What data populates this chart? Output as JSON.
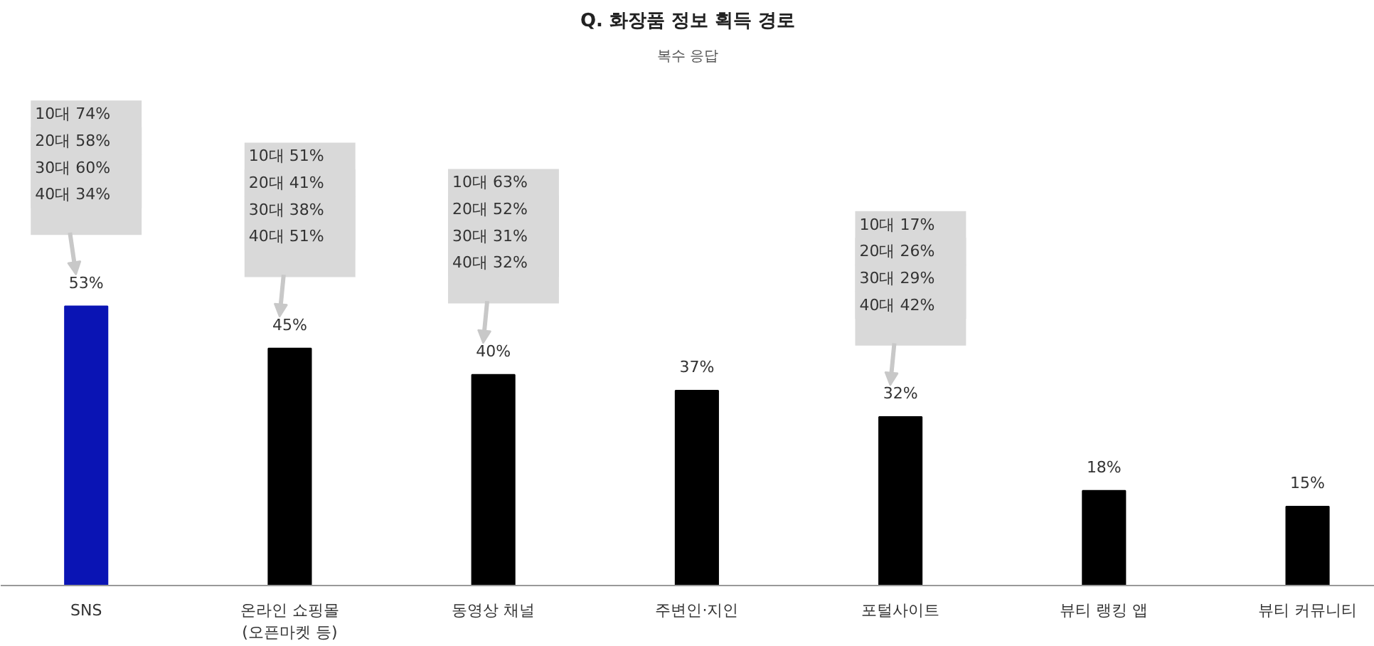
{
  "chart_data": {
    "type": "bar",
    "title": "Q. 화장품 정보 획득 경로",
    "subtitle": "복수 응답",
    "categories": [
      "SNS",
      "온라인 쇼핑몰\n(오픈마켓 등)",
      "동영상 채널",
      "주변인·지인",
      "포털사이트",
      "뷰티 랭킹 앱",
      "뷰티 커뮤니티"
    ],
    "values": [
      53,
      45,
      40,
      37,
      32,
      18,
      15
    ],
    "colors": [
      "#0a14b4",
      "#000000",
      "#000000",
      "#000000",
      "#000000",
      "#000000",
      "#000000"
    ],
    "value_labels": [
      "53%",
      "45%",
      "40%",
      "37%",
      "32%",
      "18%",
      "15%"
    ],
    "grid": false,
    "annotations": [
      "10대 74%",
      "20대 58%",
      "30대 60%",
      "40대 34%",
      "10대 51%",
      "20대 41%",
      "30대 38%",
      "40대 51%",
      "10대 63%",
      "20대 52%",
      "30대 31%",
      "40대 32%",
      "10대 17%",
      "20대 26%",
      "30대 29%",
      "40대 42%"
    ]
  }
}
